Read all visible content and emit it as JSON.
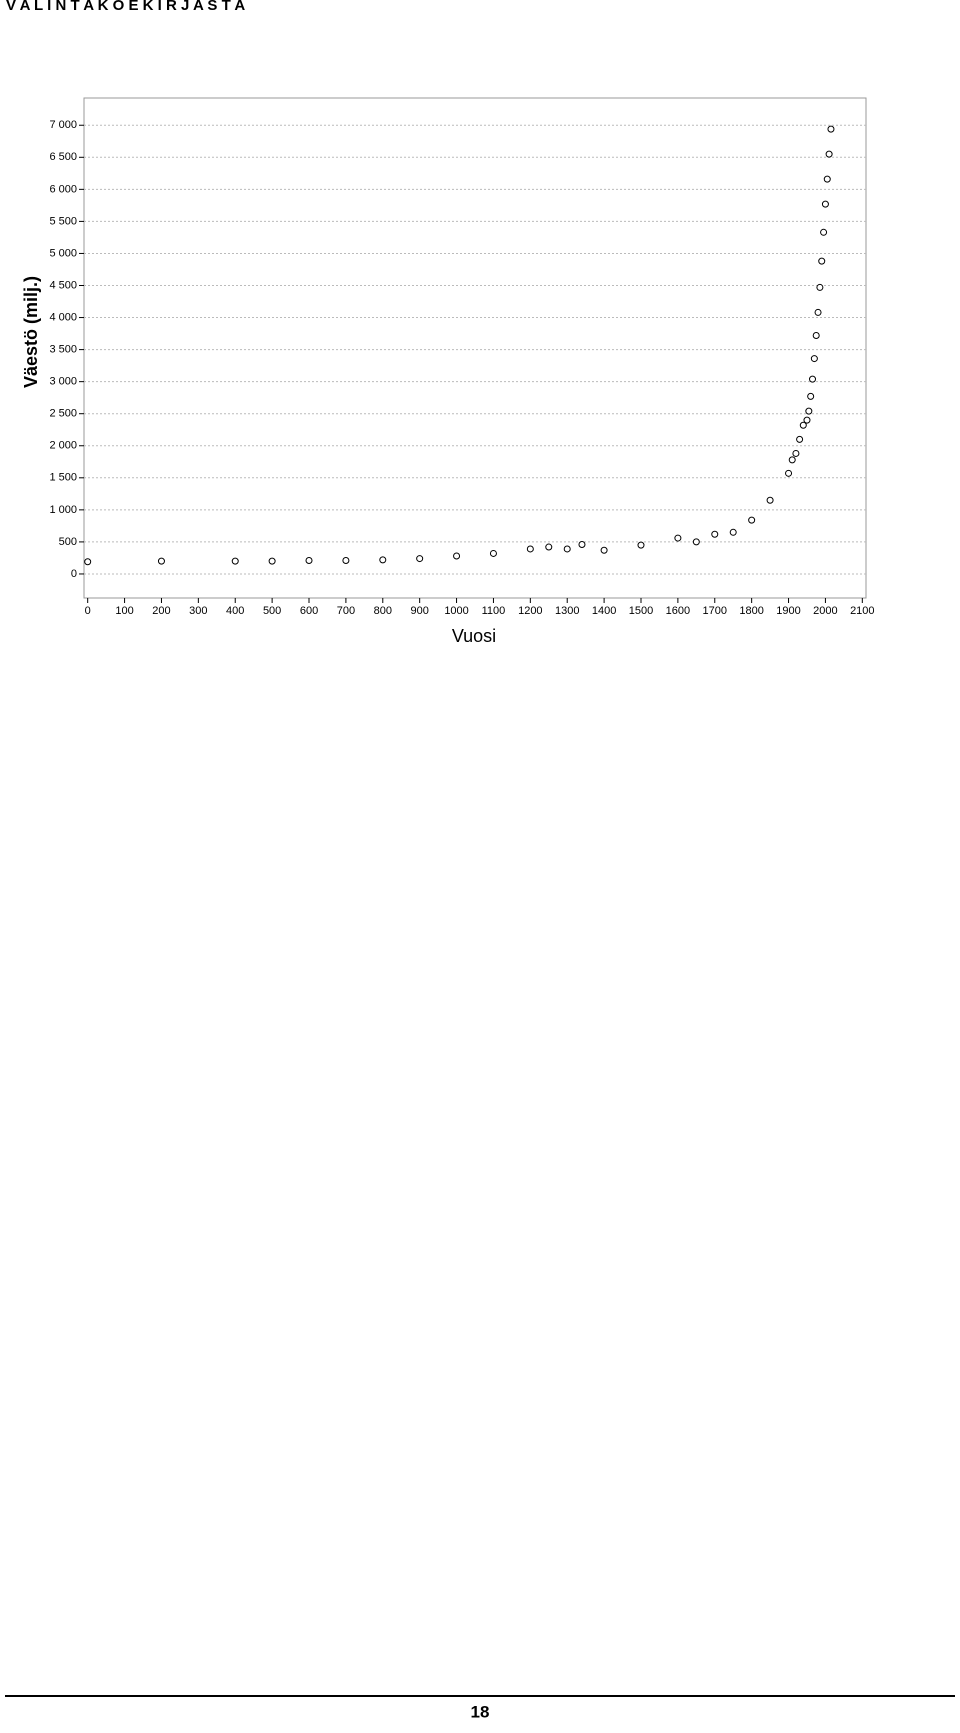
{
  "header": "V A L I N T A K O E K I R J A S T A",
  "page_number": "18",
  "chart_data": {
    "type": "scatter",
    "x_label": "Vuosi",
    "y_label": "Väestö (milj.)",
    "x": [
      0,
      200,
      400,
      500,
      600,
      700,
      800,
      900,
      1000,
      1100,
      1200,
      1250,
      1300,
      1340,
      1400,
      1500,
      1600,
      1650,
      1700,
      1750,
      1800,
      1850,
      1900,
      1910,
      1920,
      1930,
      1940,
      1950,
      1955,
      1960,
      1965,
      1970,
      1975,
      1980,
      1985,
      1990,
      1995,
      2000,
      2005,
      2010,
      2015
    ],
    "values": [
      190,
      200,
      200,
      200,
      210,
      210,
      220,
      240,
      280,
      320,
      390,
      420,
      390,
      460,
      370,
      450,
      560,
      500,
      620,
      650,
      840,
      1150,
      1570,
      1780,
      1880,
      2100,
      2320,
      2400,
      2540,
      2770,
      3040,
      3360,
      3720,
      4080,
      4470,
      4880,
      5330,
      5770,
      6160,
      6550,
      6940
    ],
    "color": "#000000",
    "xlim": [
      -10,
      2110
    ],
    "ylim": [
      -375,
      7425
    ],
    "xticks": [
      0,
      100,
      200,
      300,
      400,
      500,
      600,
      700,
      800,
      900,
      1000,
      1100,
      1200,
      1300,
      1400,
      1500,
      1600,
      1700,
      1800,
      1900,
      2000,
      2100
    ],
    "yticks": [
      0,
      {
        "value": 500,
        "label": "500"
      },
      {
        "value": 1000,
        "label": "1 000"
      },
      {
        "value": 1500,
        "label": "1 500"
      },
      {
        "value": 2000,
        "label": "2 000"
      },
      {
        "value": 2500,
        "label": "2 500"
      },
      {
        "value": 3000,
        "label": "3 000"
      },
      {
        "value": 3500,
        "label": "3 500"
      },
      {
        "value": 4000,
        "label": "4 000"
      },
      {
        "value": 4500,
        "label": "4 500"
      },
      {
        "value": 5000,
        "label": "5 000"
      },
      {
        "value": 5500,
        "label": "5 500"
      },
      {
        "value": 6000,
        "label": "6 000"
      },
      {
        "value": 6500,
        "label": "6 500"
      },
      {
        "value": 7000,
        "label": "7 000"
      }
    ],
    "grid": true
  }
}
